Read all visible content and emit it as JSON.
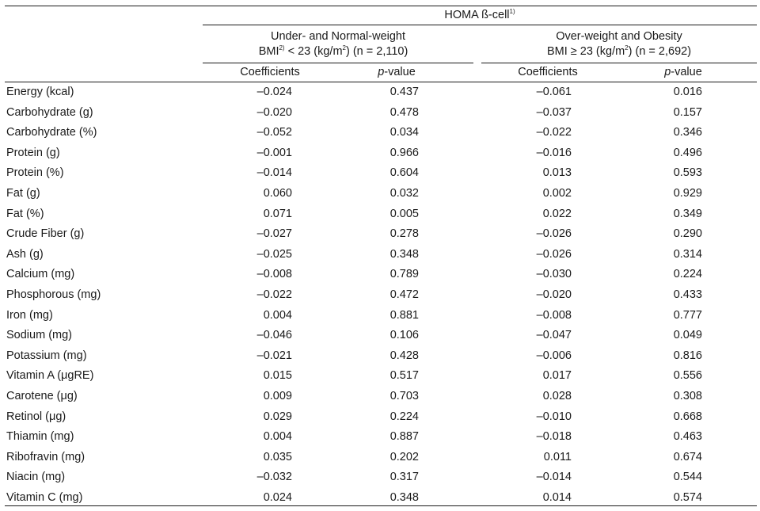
{
  "table": {
    "super_header": "HOMA ß-cell",
    "super_header_note": "1)",
    "group1": {
      "line1": "Under- and Normal-weight",
      "bmi_prefix": "BMI",
      "bmi_note": "2)",
      "bmi_cond": " < 23 (kg/m",
      "bmi_exp": "2",
      "bmi_suffix": ") (n = 2,110)"
    },
    "group2": {
      "line1": "Over-weight and Obesity",
      "bmi_prefix": "BMI ≥ 23 (kg/m",
      "bmi_exp": "2",
      "bmi_suffix": ") (n = 2,692)"
    },
    "col_coef": "Coefficients",
    "col_p_italic": "p",
    "col_p_rest": "-value",
    "rows": [
      {
        "label": "Energy (kcal)",
        "c1": "–0.024",
        "p1": "0.437",
        "c2": "–0.061",
        "p2": "0.016"
      },
      {
        "label": "Carbohydrate (g)",
        "c1": "–0.020",
        "p1": "0.478",
        "c2": "–0.037",
        "p2": "0.157"
      },
      {
        "label": "Carbohydrate (%)",
        "c1": "–0.052",
        "p1": "0.034",
        "c2": "–0.022",
        "p2": "0.346"
      },
      {
        "label": "Protein (g)",
        "c1": "–0.001",
        "p1": "0.966",
        "c2": "–0.016",
        "p2": "0.496"
      },
      {
        "label": "Protein (%)",
        "c1": "–0.014",
        "p1": "0.604",
        "c2": "0.013",
        "p2": "0.593"
      },
      {
        "label": "Fat (g)",
        "c1": "0.060",
        "p1": "0.032",
        "c2": "0.002",
        "p2": "0.929"
      },
      {
        "label": "Fat (%)",
        "c1": "0.071",
        "p1": "0.005",
        "c2": "0.022",
        "p2": "0.349"
      },
      {
        "label": "Crude Fiber (g)",
        "c1": "–0.027",
        "p1": "0.278",
        "c2": "–0.026",
        "p2": "0.290"
      },
      {
        "label": "Ash (g)",
        "c1": "–0.025",
        "p1": "0.348",
        "c2": "–0.026",
        "p2": "0.314"
      },
      {
        "label": "Calcium (mg)",
        "c1": "–0.008",
        "p1": "0.789",
        "c2": "–0.030",
        "p2": "0.224"
      },
      {
        "label": "Phosphorous (mg)",
        "c1": "–0.022",
        "p1": "0.472",
        "c2": "–0.020",
        "p2": "0.433"
      },
      {
        "label": "Iron (mg)",
        "c1": "0.004",
        "p1": "0.881",
        "c2": "–0.008",
        "p2": "0.777"
      },
      {
        "label": "Sodium (mg)",
        "c1": "–0.046",
        "p1": "0.106",
        "c2": "–0.047",
        "p2": "0.049"
      },
      {
        "label": "Potassium (mg)",
        "c1": "–0.021",
        "p1": "0.428",
        "c2": "–0.006",
        "p2": "0.816"
      },
      {
        "label": "Vitamin A (μgRE)",
        "c1": "0.015",
        "p1": "0.517",
        "c2": "0.017",
        "p2": "0.556"
      },
      {
        "label": "Carotene (μg)",
        "c1": "0.009",
        "p1": "0.703",
        "c2": "0.028",
        "p2": "0.308"
      },
      {
        "label": "Retinol (μg)",
        "c1": "0.029",
        "p1": "0.224",
        "c2": "–0.010",
        "p2": "0.668"
      },
      {
        "label": "Thiamin (mg)",
        "c1": "0.004",
        "p1": "0.887",
        "c2": "–0.018",
        "p2": "0.463"
      },
      {
        "label": "Ribofravin (mg)",
        "c1": "0.035",
        "p1": "0.202",
        "c2": "0.011",
        "p2": "0.674"
      },
      {
        "label": "Niacin (mg)",
        "c1": "–0.032",
        "p1": "0.317",
        "c2": "–0.014",
        "p2": "0.544"
      },
      {
        "label": "Vitamin C (mg)",
        "c1": "0.024",
        "p1": "0.348",
        "c2": "0.014",
        "p2": "0.574"
      }
    ]
  }
}
